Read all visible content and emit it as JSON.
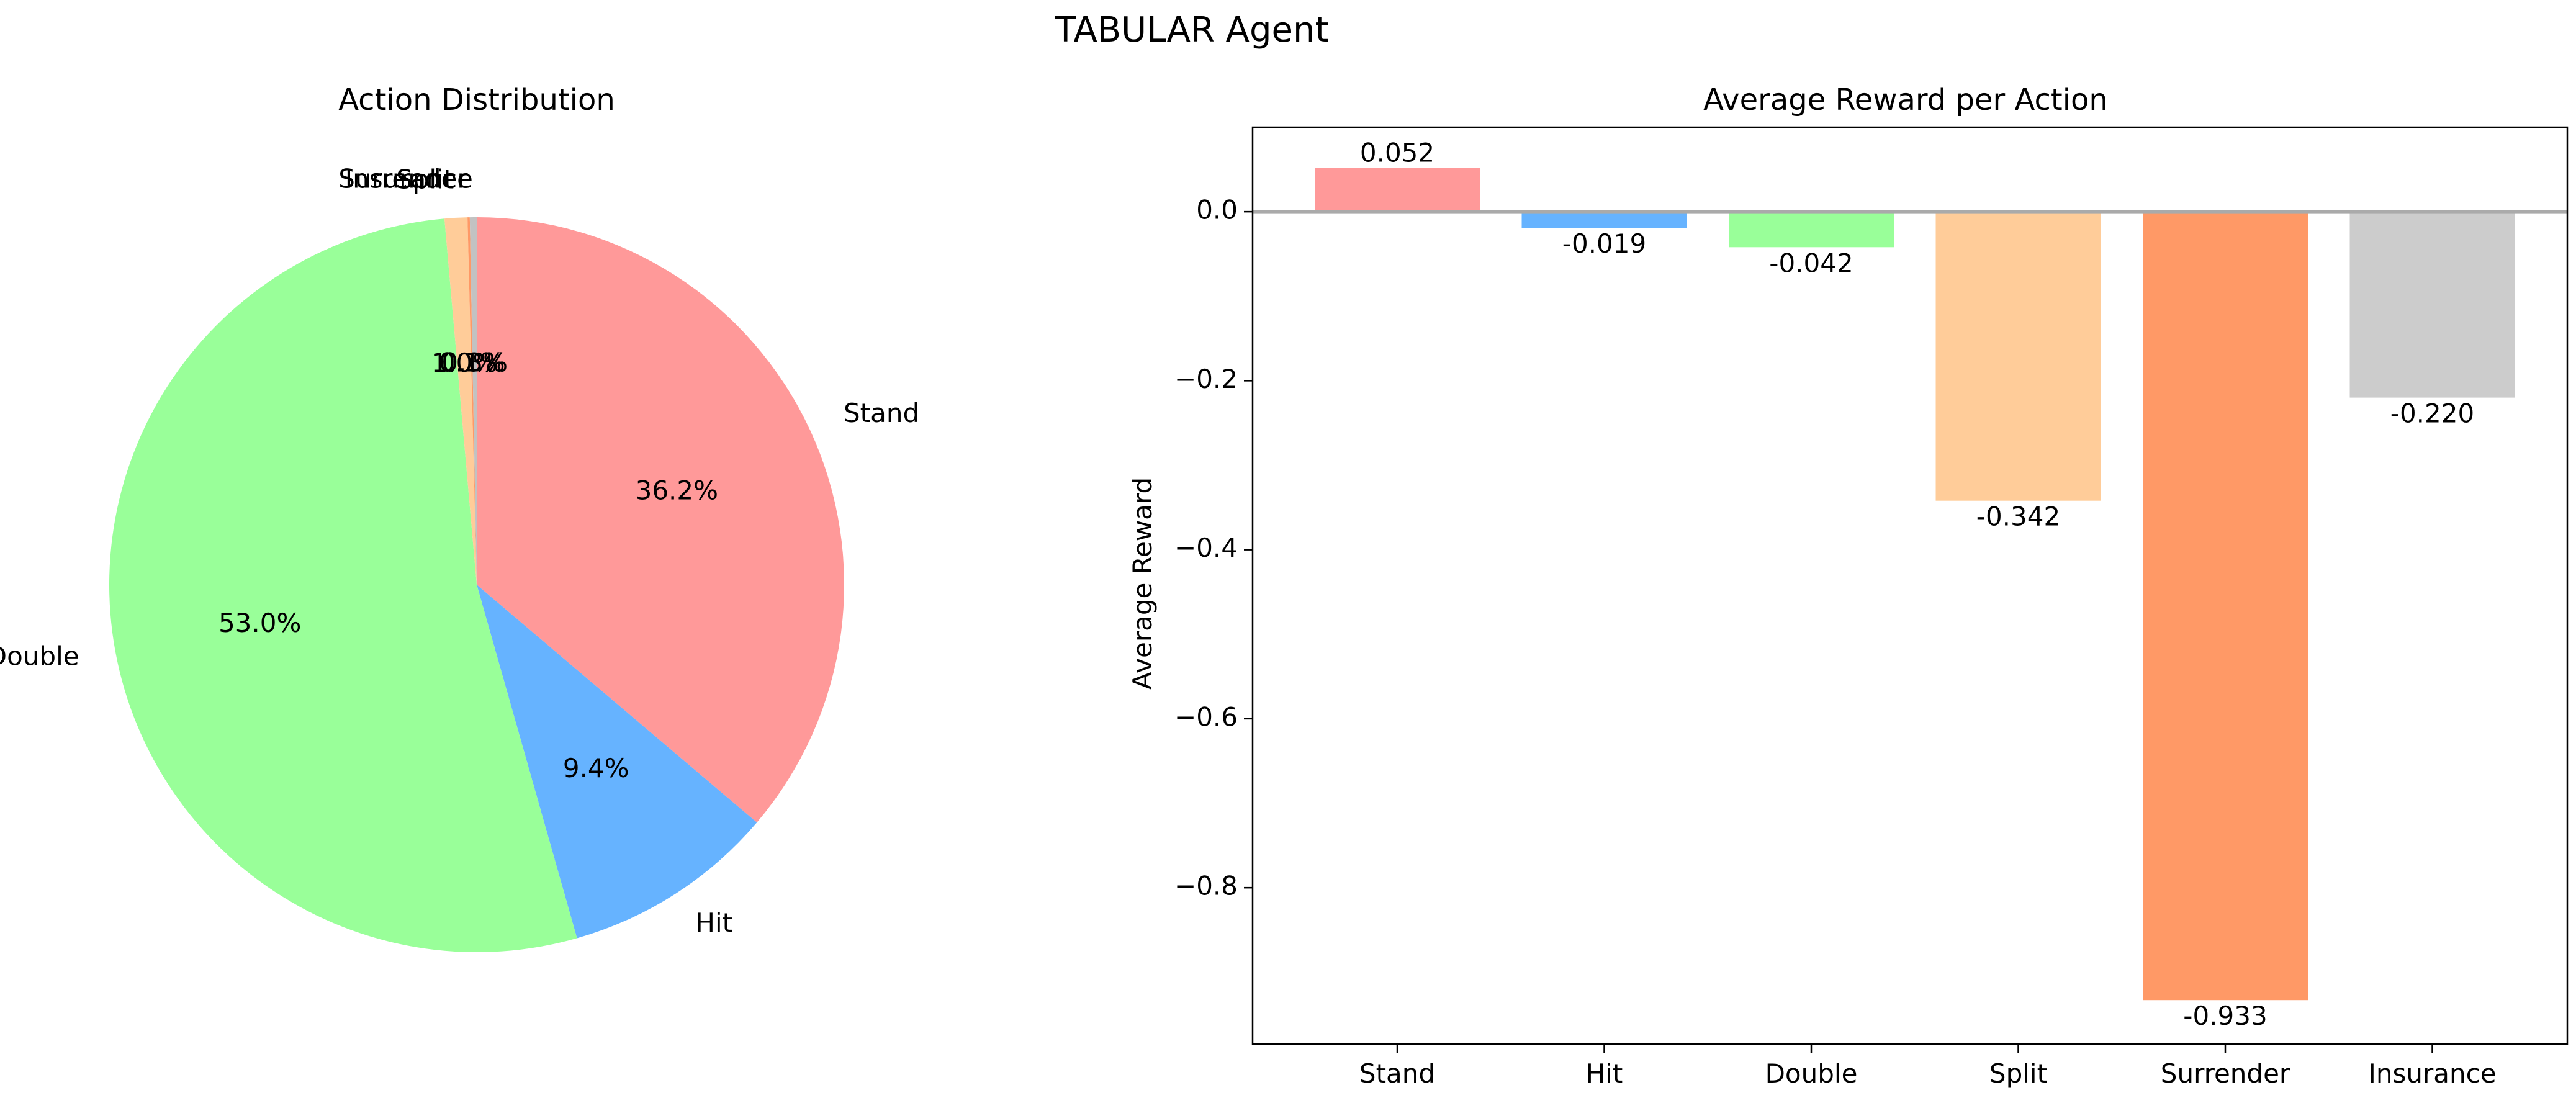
{
  "figure": {
    "suptitle": "TABULAR Agent"
  },
  "chart_data": [
    {
      "type": "pie",
      "title": "Action Distribution",
      "start_angle_deg": 90,
      "direction": "clockwise",
      "slices": [
        {
          "label": "Stand",
          "value": 36.2,
          "pct_label": "36.2%",
          "color": "#ff9999"
        },
        {
          "label": "Hit",
          "value": 9.4,
          "pct_label": "9.4%",
          "color": "#66b3ff"
        },
        {
          "label": "Double",
          "value": 53.0,
          "pct_label": "53.0%",
          "color": "#99ff99"
        },
        {
          "label": "Split",
          "value": 1.0,
          "pct_label": "1.0%",
          "color": "#ffcc99"
        },
        {
          "label": "Surrender",
          "value": 0.1,
          "pct_label": "0.1%",
          "color": "#ff9966"
        },
        {
          "label": "Insurance",
          "value": 0.3,
          "pct_label": "0.3%",
          "color": "#c2c2c2"
        }
      ]
    },
    {
      "type": "bar",
      "title": "Average Reward per Action",
      "xlabel": "",
      "ylabel": "Average Reward",
      "categories": [
        "Stand",
        "Hit",
        "Double",
        "Split",
        "Surrender",
        "Insurance"
      ],
      "values": [
        0.052,
        -0.019,
        -0.042,
        -0.342,
        -0.933,
        -0.22
      ],
      "value_labels": [
        "0.052",
        "-0.019",
        "-0.042",
        "-0.342",
        "-0.933",
        "-0.220"
      ],
      "colors": [
        "#ff9999",
        "#66b3ff",
        "#99ff99",
        "#ffcc99",
        "#ff9966",
        "#cccccc"
      ],
      "ylim": [
        -0.985,
        0.1
      ],
      "yticks": [
        0.0,
        -0.2,
        -0.4,
        -0.6,
        -0.8
      ],
      "ytick_labels": [
        "0.0",
        "−0.2",
        "−0.4",
        "−0.6",
        "−0.8"
      ],
      "zero_line": true,
      "grid": false
    }
  ]
}
